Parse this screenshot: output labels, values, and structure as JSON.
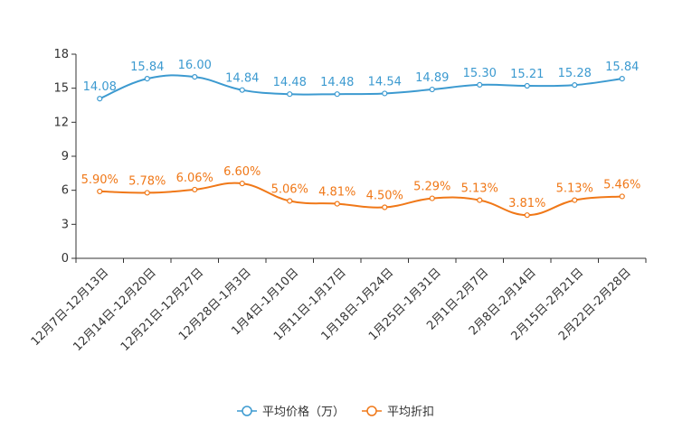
{
  "chart_data": {
    "type": "line",
    "categories": [
      "12月7日-12月13日",
      "12月14日-12月20日",
      "12月21日-12月27日",
      "12月28日-1月3日",
      "1月4日-1月10日",
      "1月11日-1月17日",
      "1月18日-1月24日",
      "1月25日-1月31日",
      "2月1日-2月7日",
      "2月8日-2月14日",
      "2月15日-2月21日",
      "2月22日-2月28日"
    ],
    "yticks": [
      "0",
      "3",
      "6",
      "9",
      "12",
      "15",
      "18"
    ],
    "ylim": [
      0,
      18
    ],
    "grid": false,
    "legend_position": "bottom",
    "series": [
      {
        "name": "平均价格（万）",
        "color": "#3c9ad0",
        "values": [
          14.08,
          15.84,
          16.0,
          14.84,
          14.48,
          14.48,
          14.54,
          14.89,
          15.3,
          15.21,
          15.28,
          15.84
        ],
        "labels": [
          "14.08",
          "15.84",
          "16.00",
          "14.84",
          "14.48",
          "14.48",
          "14.54",
          "14.89",
          "15.30",
          "15.21",
          "15.28",
          "15.84"
        ]
      },
      {
        "name": "平均折扣",
        "color": "#f07818",
        "values": [
          5.9,
          5.78,
          6.06,
          6.6,
          5.06,
          4.81,
          4.5,
          5.29,
          5.13,
          3.81,
          5.13,
          5.46
        ],
        "labels": [
          "5.90%",
          "5.78%",
          "6.06%",
          "6.60%",
          "5.06%",
          "4.81%",
          "4.50%",
          "5.29%",
          "5.13%",
          "3.81%",
          "5.13%",
          "5.46%"
        ]
      }
    ]
  }
}
